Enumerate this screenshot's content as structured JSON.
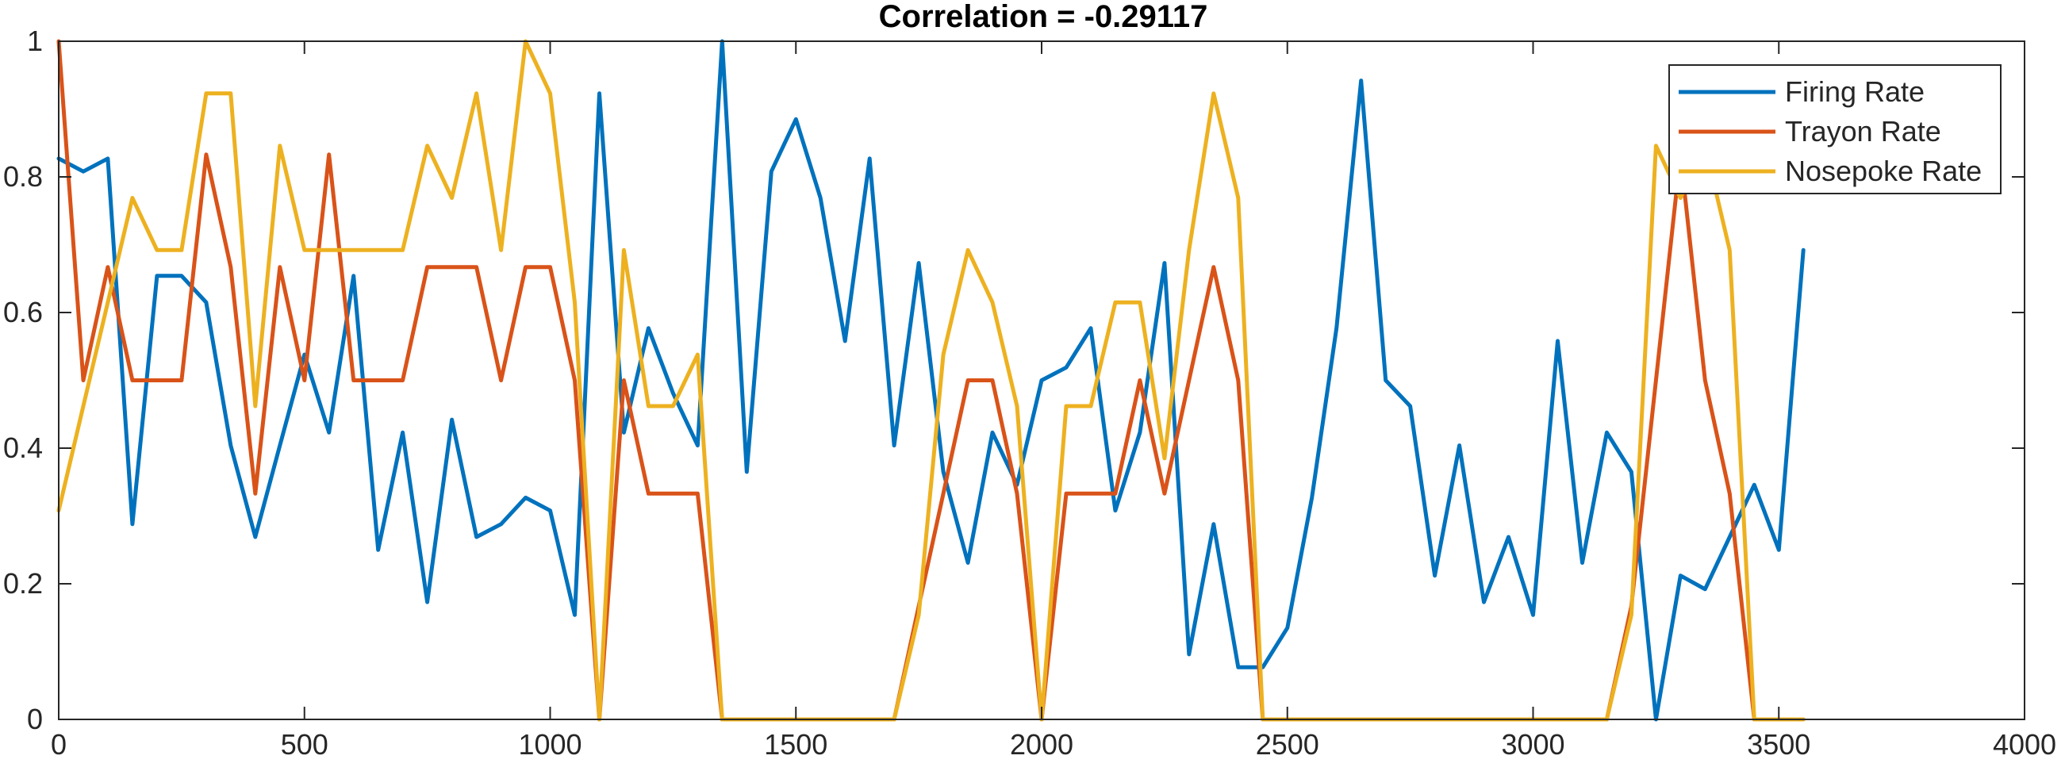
{
  "chart_data": {
    "type": "line",
    "title": "Correlation = -0.29117",
    "xlabel": "",
    "ylabel": "",
    "xlim": [
      0,
      4000
    ],
    "ylim": [
      0,
      1
    ],
    "xticks": [
      0,
      500,
      1000,
      1500,
      2000,
      2500,
      3000,
      3500,
      4000
    ],
    "yticks": [
      0,
      0.2,
      0.4,
      0.6,
      0.8,
      1
    ],
    "grid": false,
    "legend_position": "top-right",
    "x": [
      0,
      50,
      100,
      150,
      200,
      250,
      300,
      350,
      400,
      450,
      500,
      550,
      600,
      650,
      700,
      750,
      800,
      850,
      900,
      950,
      1000,
      1050,
      1100,
      1150,
      1200,
      1250,
      1300,
      1350,
      1400,
      1450,
      1500,
      1550,
      1600,
      1650,
      1700,
      1750,
      1800,
      1850,
      1900,
      1950,
      2000,
      2050,
      2100,
      2150,
      2200,
      2250,
      2300,
      2350,
      2400,
      2450,
      2500,
      2550,
      2600,
      2650,
      2700,
      2750,
      2800,
      2850,
      2900,
      2950,
      3000,
      3050,
      3100,
      3150,
      3200,
      3250,
      3300,
      3350,
      3400,
      3450,
      3500,
      3550
    ],
    "series": [
      {
        "name": "Firing Rate",
        "color": "#0072BD",
        "values": [
          0.827,
          0.808,
          0.827,
          0.288,
          0.654,
          0.654,
          0.615,
          0.404,
          0.269,
          0.404,
          0.538,
          0.423,
          0.654,
          0.25,
          0.423,
          0.173,
          0.442,
          0.269,
          0.288,
          0.327,
          0.308,
          0.154,
          0.923,
          0.423,
          0.577,
          0.481,
          0.404,
          1.0,
          0.365,
          0.808,
          0.885,
          0.769,
          0.558,
          0.827,
          0.404,
          0.673,
          0.365,
          0.231,
          0.423,
          0.346,
          0.5,
          0.519,
          0.577,
          0.308,
          0.423,
          0.673,
          0.096,
          0.288,
          0.077,
          0.077,
          0.135,
          0.327,
          0.577,
          0.942,
          0.5,
          0.462,
          0.212,
          0.404,
          0.173,
          0.269,
          0.154,
          0.558,
          0.231,
          0.423,
          0.365,
          0.0,
          0.212,
          0.192,
          0.269,
          0.346,
          0.25,
          0.692
        ]
      },
      {
        "name": "Trayon Rate",
        "color": "#D95319",
        "values": [
          1.0,
          0.5,
          0.667,
          0.5,
          0.5,
          0.5,
          0.833,
          0.667,
          0.333,
          0.667,
          0.5,
          0.833,
          0.5,
          0.5,
          0.5,
          0.667,
          0.667,
          0.667,
          0.5,
          0.667,
          0.667,
          0.5,
          0.0,
          0.5,
          0.333,
          0.333,
          0.333,
          0.0,
          0.0,
          0.0,
          0.0,
          0.0,
          0.0,
          0.0,
          0.0,
          0.167,
          0.333,
          0.5,
          0.5,
          0.333,
          0.0,
          0.333,
          0.333,
          0.333,
          0.5,
          0.333,
          0.5,
          0.667,
          0.5,
          0.0,
          0.0,
          0.0,
          0.0,
          0.0,
          0.0,
          0.0,
          0.0,
          0.0,
          0.0,
          0.0,
          0.0,
          0.0,
          0.0,
          0.0,
          0.167,
          0.5,
          0.833,
          0.5,
          0.333,
          0.0,
          0.0,
          0.0
        ]
      },
      {
        "name": "Nosepoke Rate",
        "color": "#EDB120",
        "values": [
          0.308,
          0.462,
          0.615,
          0.769,
          0.692,
          0.692,
          0.923,
          0.923,
          0.462,
          0.846,
          0.692,
          0.692,
          0.692,
          0.692,
          0.692,
          0.846,
          0.769,
          0.923,
          0.692,
          1.0,
          0.923,
          0.615,
          0.0,
          0.692,
          0.462,
          0.462,
          0.538,
          0.0,
          0.0,
          0.0,
          0.0,
          0.0,
          0.0,
          0.0,
          0.0,
          0.154,
          0.538,
          0.692,
          0.615,
          0.462,
          0.0,
          0.462,
          0.462,
          0.615,
          0.615,
          0.385,
          0.692,
          0.923,
          0.769,
          0.0,
          0.0,
          0.0,
          0.0,
          0.0,
          0.0,
          0.0,
          0.0,
          0.0,
          0.0,
          0.0,
          0.0,
          0.0,
          0.0,
          0.0,
          0.154,
          0.846,
          0.769,
          0.846,
          0.692,
          0.0,
          0.0,
          0.0
        ]
      }
    ]
  }
}
